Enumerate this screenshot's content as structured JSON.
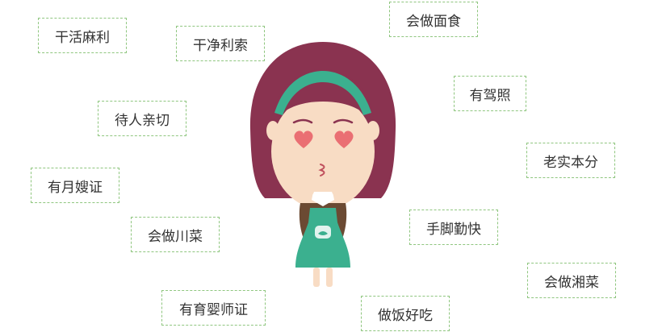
{
  "tags": [
    "干活麻利",
    "干净利索",
    "会做面食",
    "有驾照",
    "待人亲切",
    "老实本分",
    "有月嫂证",
    "会做川菜",
    "手脚勤快",
    "会做湘菜",
    "有育婴师证",
    "做饭好吃"
  ],
  "illustration": {
    "subject": "girl-character",
    "colors": {
      "hair": "#8a3350",
      "headband": "#3bb08f",
      "skin": "#f8dcc4",
      "heart_eyes": "#ea6f73",
      "apron": "#3bb08f",
      "dress": "#6b4a33",
      "tag_border": "#8fc67f"
    }
  }
}
